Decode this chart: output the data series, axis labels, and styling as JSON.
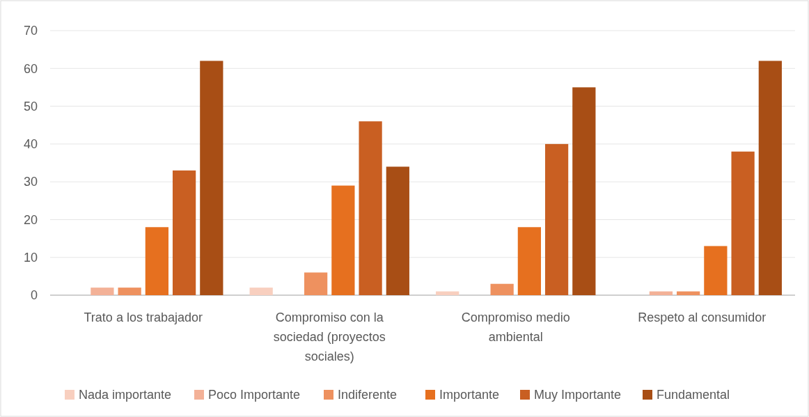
{
  "chart_data": {
    "type": "bar",
    "categories": [
      "Trato a los trabajador",
      "Compromiso con la sociedad (proyectos sociales)",
      "Compromiso medio ambiental",
      "Respeto al consumidor"
    ],
    "series": [
      {
        "name": "Nada importante",
        "color": "#f8cfbf",
        "values": [
          0,
          2,
          1,
          0
        ]
      },
      {
        "name": "Poco Importante",
        "color": "#f3b197",
        "values": [
          2,
          0,
          0,
          1
        ]
      },
      {
        "name": "Indiferente",
        "color": "#ee915f",
        "values": [
          2,
          6,
          3,
          1
        ]
      },
      {
        "name": "Importante",
        "color": "#e6701f",
        "values": [
          18,
          29,
          18,
          13
        ]
      },
      {
        "name": "Muy Importante",
        "color": "#c95f22",
        "values": [
          33,
          46,
          40,
          38
        ]
      },
      {
        "name": "Fundamental",
        "color": "#a84e15",
        "values": [
          62,
          34,
          55,
          62
        ]
      }
    ],
    "ylim": [
      0,
      70
    ],
    "yticks": [
      0,
      10,
      20,
      30,
      40,
      50,
      60,
      70
    ],
    "grid": "y",
    "legend": "bottom"
  }
}
